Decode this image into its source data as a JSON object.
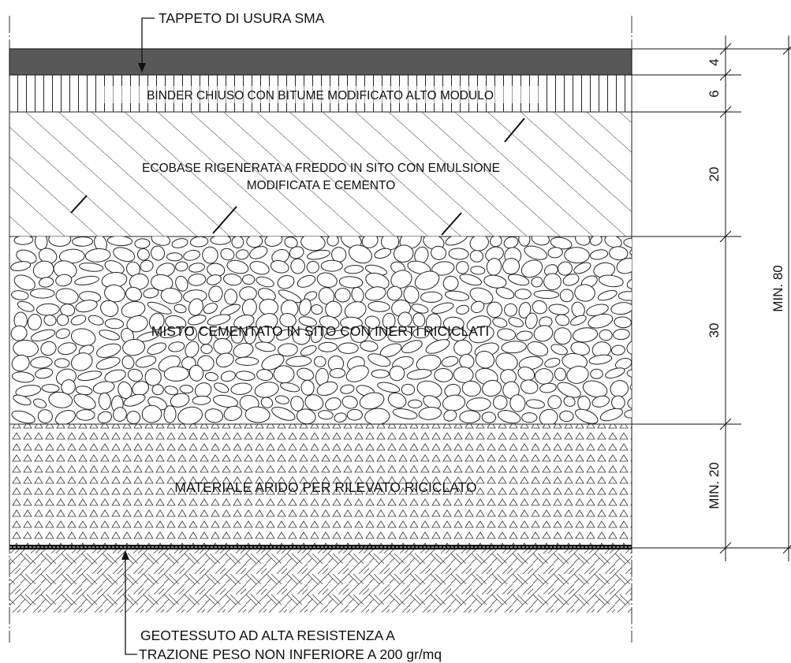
{
  "callouts": {
    "top": "TAPPETO DI USURA SMA",
    "bottom_line1": "GEOTESSUTO AD ALTA RESISTENZA A",
    "bottom_line2": "TRAZIONE PESO NON INFERIORE A 200 gr/mq"
  },
  "layers": [
    {
      "key": "sma",
      "label": "",
      "thickness": "4"
    },
    {
      "key": "binder",
      "label": "BINDER CHIUSO CON BITUME MODIFICATO ALTO MODULO",
      "thickness": "6"
    },
    {
      "key": "ecobase",
      "label_line1": "ECOBASE RIGENERATA A FREDDO IN SITO CON EMULSIONE",
      "label_line2": "MODIFICATA E CEMENTO",
      "thickness": "20"
    },
    {
      "key": "misto",
      "label": "MISTO CEMENTATO IN SITO CON INERTI RICICLATI",
      "thickness": "30"
    },
    {
      "key": "arido",
      "label": "MATERIALE ARIDO PER RILEVATO RICICLATO",
      "thickness": "MIN. 20"
    }
  ],
  "total": "MIN. 80"
}
